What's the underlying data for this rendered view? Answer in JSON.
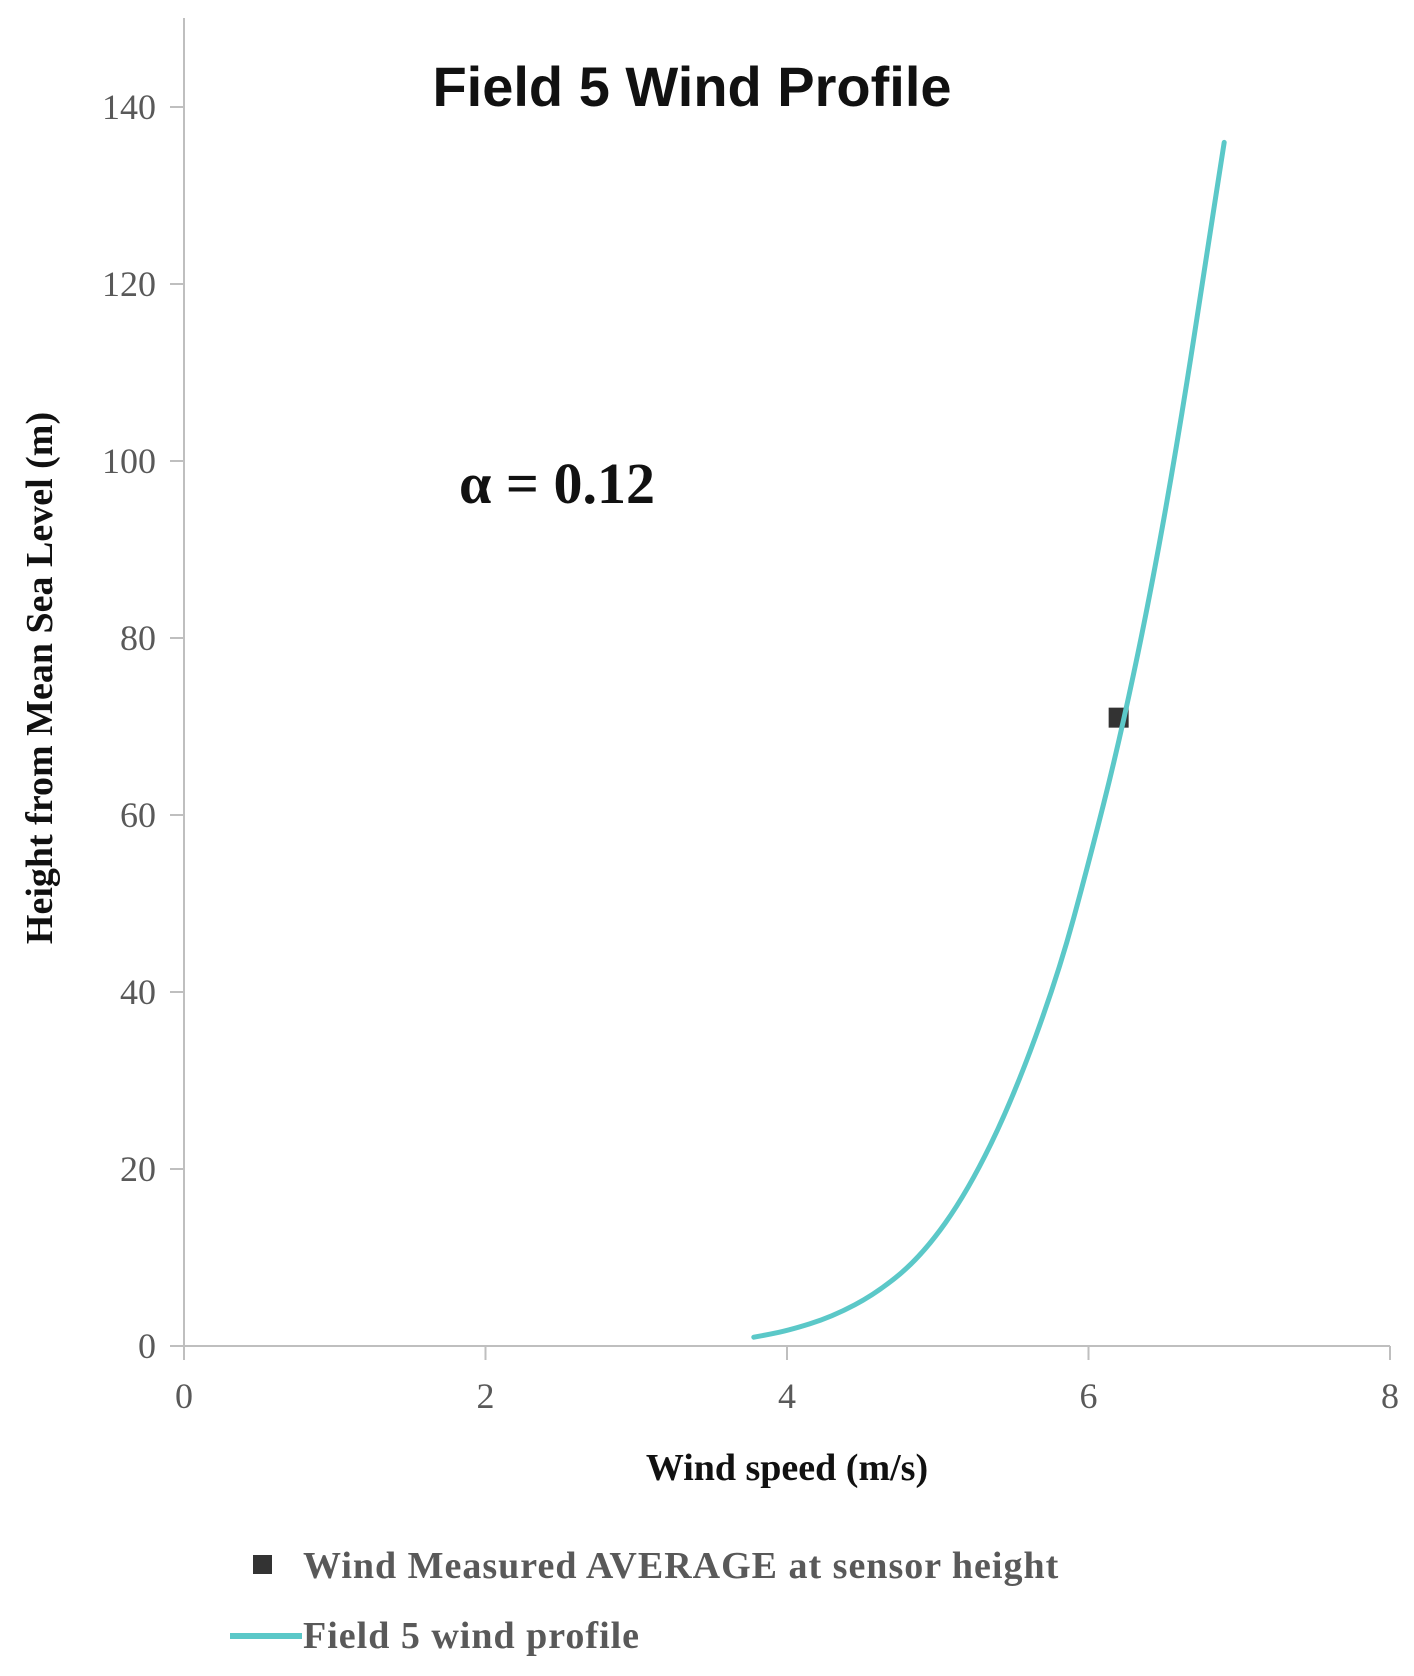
{
  "chart_data": {
    "type": "line",
    "title": "Field 5 Wind Profile",
    "xlabel": "Wind speed (m/s)",
    "ylabel": "Height from Mean Sea Level (m)",
    "xlim": [
      0,
      8
    ],
    "ylim": [
      0,
      150
    ],
    "x_ticks": [
      "0",
      "2",
      "4",
      "6",
      "8"
    ],
    "y_ticks": [
      "0",
      "20",
      "40",
      "60",
      "80",
      "100",
      "120",
      "140"
    ],
    "annotation": "α = 0.12",
    "grid": false,
    "legend_position": "bottom",
    "series": [
      {
        "name": "Wind Measured AVERAGE at sensor height",
        "kind": "scatter",
        "color": "#333333",
        "marker": "square",
        "points": [
          {
            "x": 6.2,
            "y": 71
          }
        ]
      },
      {
        "name": "Field 5 wind profile",
        "kind": "line",
        "color": "#5bc8c8",
        "points": [
          {
            "x": 3.78,
            "y": 1
          },
          {
            "x": 4.0,
            "y": 1.7
          },
          {
            "x": 4.3,
            "y": 3.3
          },
          {
            "x": 4.6,
            "y": 6.0
          },
          {
            "x": 4.9,
            "y": 10.3
          },
          {
            "x": 5.2,
            "y": 17.5
          },
          {
            "x": 5.5,
            "y": 28.0
          },
          {
            "x": 5.8,
            "y": 42.0
          },
          {
            "x": 6.0,
            "y": 54.5
          },
          {
            "x": 6.2,
            "y": 68.0
          },
          {
            "x": 6.4,
            "y": 84.0
          },
          {
            "x": 6.6,
            "y": 103.0
          },
          {
            "x": 6.8,
            "y": 125.0
          },
          {
            "x": 6.9,
            "y": 136.0
          }
        ]
      }
    ]
  }
}
